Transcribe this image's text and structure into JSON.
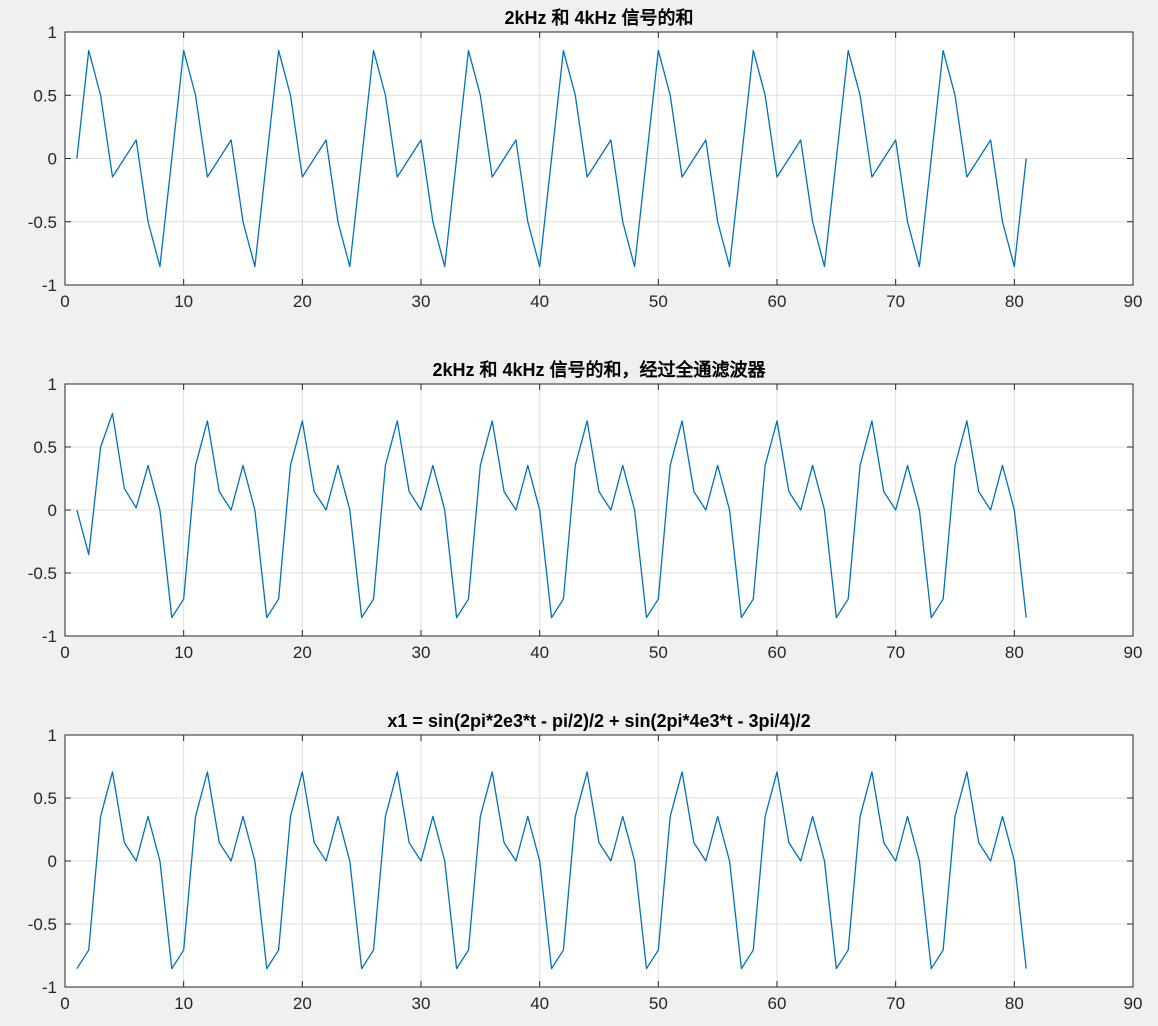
{
  "figure": {
    "background": "#f0f0f0"
  },
  "chart_data": [
    {
      "type": "line",
      "title": "2kHz 和 4kHz 信号的和",
      "xlabel": "",
      "ylabel": "",
      "xlim": [
        0,
        90
      ],
      "ylim": [
        -1,
        1
      ],
      "xticks": [
        "0",
        "10",
        "20",
        "30",
        "40",
        "50",
        "60",
        "70",
        "80",
        "90"
      ],
      "yticks": [
        "1",
        "0.5",
        "0",
        "-0.5",
        "-1"
      ],
      "grid": true,
      "series_color": "#0072bd",
      "x_start": 1,
      "series": [
        {
          "values": [
            0,
            0.854,
            0.5,
            -0.146,
            0,
            0.146,
            -0.5,
            -0.854,
            0,
            0.854,
            0.5,
            -0.146,
            0,
            0.146,
            -0.5,
            -0.854,
            0,
            0.854,
            0.5,
            -0.146,
            0,
            0.146,
            -0.5,
            -0.854,
            0,
            0.854,
            0.5,
            -0.146,
            0,
            0.146,
            -0.5,
            -0.854,
            0,
            0.854,
            0.5,
            -0.146,
            0,
            0.146,
            -0.5,
            -0.854,
            0,
            0.854,
            0.5,
            -0.146,
            0,
            0.146,
            -0.5,
            -0.854,
            0,
            0.854,
            0.5,
            -0.146,
            0,
            0.146,
            -0.5,
            -0.854,
            0,
            0.854,
            0.5,
            -0.146,
            0,
            0.146,
            -0.5,
            -0.854,
            0,
            0.854,
            0.5,
            -0.146,
            0,
            0.146,
            -0.5,
            -0.854,
            0,
            0.854,
            0.5,
            -0.146,
            0,
            0.146,
            -0.5,
            -0.854,
            0
          ]
        }
      ]
    },
    {
      "type": "line",
      "title": "2kHz 和 4kHz 信号的和，经过全通滤波器",
      "xlabel": "",
      "ylabel": "",
      "xlim": [
        0,
        90
      ],
      "ylim": [
        -1,
        1
      ],
      "xticks": [
        "0",
        "10",
        "20",
        "30",
        "40",
        "50",
        "60",
        "70",
        "80",
        "90"
      ],
      "yticks": [
        "1",
        "0.5",
        "0",
        "-0.5",
        "-1"
      ],
      "grid": true,
      "series_color": "#0072bd",
      "x_start": 1,
      "series": [
        {
          "values": [
            0,
            -0.354,
            0.5,
            0.766,
            0.171,
            0.017,
            0.354,
            0,
            -0.854,
            -0.707,
            0.354,
            0.707,
            0.146,
            0,
            0.354,
            0,
            -0.854,
            -0.707,
            0.354,
            0.707,
            0.146,
            0,
            0.354,
            0,
            -0.854,
            -0.707,
            0.354,
            0.707,
            0.146,
            0,
            0.354,
            0,
            -0.854,
            -0.707,
            0.354,
            0.707,
            0.146,
            0,
            0.354,
            0,
            -0.854,
            -0.707,
            0.354,
            0.707,
            0.146,
            0,
            0.354,
            0,
            -0.854,
            -0.707,
            0.354,
            0.707,
            0.146,
            0,
            0.354,
            0,
            -0.854,
            -0.707,
            0.354,
            0.707,
            0.146,
            0,
            0.354,
            0,
            -0.854,
            -0.707,
            0.354,
            0.707,
            0.146,
            0,
            0.354,
            0,
            -0.854,
            -0.707,
            0.354,
            0.707,
            0.146,
            0,
            0.354,
            0,
            -0.854
          ]
        }
      ]
    },
    {
      "type": "line",
      "title": "x1 = sin(2pi*2e3*t - pi/2)/2 + sin(2pi*4e3*t - 3pi/4)/2",
      "xlabel": "",
      "ylabel": "",
      "xlim": [
        0,
        90
      ],
      "ylim": [
        -1,
        1
      ],
      "xticks": [
        "0",
        "10",
        "20",
        "30",
        "40",
        "50",
        "60",
        "70",
        "80",
        "90"
      ],
      "yticks": [
        "1",
        "0.5",
        "0",
        "-0.5",
        "-1"
      ],
      "grid": true,
      "series_color": "#0072bd",
      "x_start": 1,
      "series": [
        {
          "values": [
            -0.854,
            -0.707,
            0.354,
            0.707,
            0.146,
            0,
            0.354,
            0,
            -0.854,
            -0.707,
            0.354,
            0.707,
            0.146,
            0,
            0.354,
            0,
            -0.854,
            -0.707,
            0.354,
            0.707,
            0.146,
            0,
            0.354,
            0,
            -0.854,
            -0.707,
            0.354,
            0.707,
            0.146,
            0,
            0.354,
            0,
            -0.854,
            -0.707,
            0.354,
            0.707,
            0.146,
            0,
            0.354,
            0,
            -0.854,
            -0.707,
            0.354,
            0.707,
            0.146,
            0,
            0.354,
            0,
            -0.854,
            -0.707,
            0.354,
            0.707,
            0.146,
            0,
            0.354,
            0,
            -0.854,
            -0.707,
            0.354,
            0.707,
            0.146,
            0,
            0.354,
            0,
            -0.854,
            -0.707,
            0.354,
            0.707,
            0.146,
            0,
            0.354,
            0,
            -0.854,
            -0.707,
            0.354,
            0.707,
            0.146,
            0,
            0.354,
            0,
            -0.854
          ]
        }
      ]
    }
  ]
}
